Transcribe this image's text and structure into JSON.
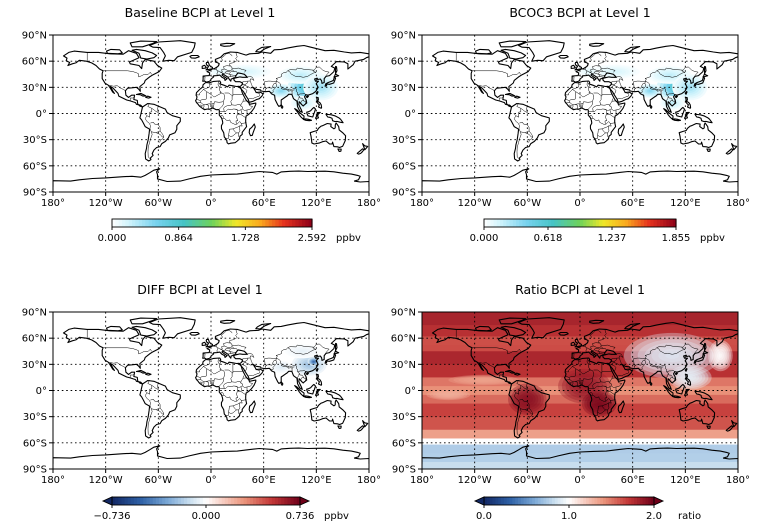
{
  "chart_data": [
    {
      "type": "heatmap",
      "title": "Baseline BCPI at Level 1",
      "colormap": "white-cyan-green-yellow-red-darkred",
      "colorbar": {
        "ticks": [
          "0.000",
          "0.864",
          "1.728",
          "2.592"
        ],
        "unit": "ppbv",
        "range": [
          0,
          2.592
        ],
        "extend": "none"
      },
      "xticks": [
        "180°",
        "120°W",
        "60°W",
        "0°",
        "60°E",
        "120°E",
        "180°"
      ],
      "yticks": [
        "90°N",
        "60°N",
        "30°N",
        "0°",
        "30°S",
        "60°S",
        "90°S"
      ],
      "grid": true,
      "blobs": [
        {
          "lon": 113,
          "lat": 30,
          "rlon": 26,
          "rlat": 16,
          "v": 0.45
        },
        {
          "lon": 116,
          "lat": 34,
          "rlon": 10,
          "rlat": 7,
          "v": 0.85
        },
        {
          "lon": 80,
          "lat": 26,
          "rlon": 14,
          "rlat": 8,
          "v": 0.22
        },
        {
          "lon": 102,
          "lat": 44,
          "rlon": 25,
          "rlat": 10,
          "v": 0.12
        },
        {
          "lon": 125,
          "lat": 30,
          "rlon": 20,
          "rlat": 15,
          "v": 0.18
        },
        {
          "lon": 105,
          "lat": 12,
          "rlon": 14,
          "rlat": 8,
          "v": 0.12
        },
        {
          "lon": 40,
          "lat": 48,
          "rlon": 28,
          "rlat": 8,
          "v": 0.08
        },
        {
          "lon": 10,
          "lat": 48,
          "rlon": 14,
          "rlat": 6,
          "v": 0.06
        }
      ]
    },
    {
      "type": "heatmap",
      "title": "BCOC3 BCPI at Level 1",
      "colormap": "white-cyan-green-yellow-red-darkred",
      "colorbar": {
        "ticks": [
          "0.000",
          "0.618",
          "1.237",
          "1.855"
        ],
        "unit": "ppbv",
        "range": [
          0,
          1.855
        ],
        "extend": "none"
      },
      "xticks": [
        "180°",
        "120°W",
        "60°W",
        "0°",
        "60°E",
        "120°E",
        "180°"
      ],
      "yticks": [
        "90°N",
        "60°N",
        "30°N",
        "0°",
        "30°S",
        "60°S",
        "90°S"
      ],
      "grid": true,
      "blobs": [
        {
          "lon": 113,
          "lat": 30,
          "rlon": 26,
          "rlat": 16,
          "v": 0.45
        },
        {
          "lon": 115,
          "lat": 34,
          "rlon": 10,
          "rlat": 7,
          "v": 0.85
        },
        {
          "lon": 80,
          "lat": 26,
          "rlon": 14,
          "rlat": 8,
          "v": 0.22
        },
        {
          "lon": 102,
          "lat": 44,
          "rlon": 25,
          "rlat": 10,
          "v": 0.12
        },
        {
          "lon": 125,
          "lat": 30,
          "rlon": 20,
          "rlat": 15,
          "v": 0.18
        },
        {
          "lon": 105,
          "lat": 12,
          "rlon": 14,
          "rlat": 8,
          "v": 0.12
        },
        {
          "lon": 40,
          "lat": 48,
          "rlon": 28,
          "rlat": 8,
          "v": 0.08
        },
        {
          "lon": 10,
          "lat": 48,
          "rlon": 14,
          "rlat": 6,
          "v": 0.06
        }
      ]
    },
    {
      "type": "heatmap",
      "title": "DIFF BCPI at Level 1",
      "colormap": "diverging-blue-white-red",
      "colorbar": {
        "ticks": [
          "−0.736",
          "0.000",
          "0.736"
        ],
        "unit": "ppbv",
        "range": [
          -0.736,
          0.736
        ],
        "extend": "both"
      },
      "xticks": [
        "180°",
        "120°W",
        "60°W",
        "0°",
        "60°E",
        "120°E",
        "180°"
      ],
      "yticks": [
        "90°N",
        "60°N",
        "30°N",
        "0°",
        "30°S",
        "60°S",
        "90°S"
      ],
      "grid": true,
      "blobs": [
        {
          "lon": 112,
          "lat": 30,
          "rlon": 20,
          "rlat": 13,
          "v": -0.35
        },
        {
          "lon": 117,
          "lat": 33,
          "rlon": 7,
          "rlat": 5,
          "v": -0.75
        },
        {
          "lon": 80,
          "lat": 27,
          "rlon": 12,
          "rlat": 7,
          "v": -0.12
        },
        {
          "lon": 104,
          "lat": 45,
          "rlon": 20,
          "rlat": 8,
          "v": -0.08
        }
      ]
    },
    {
      "type": "heatmap",
      "title": "Ratio BCPI at Level 1",
      "colormap": "diverging-blue-white-red",
      "colorbar": {
        "ticks": [
          "0.0",
          "1.0",
          "2.0"
        ],
        "unit": "ratio",
        "range": [
          0,
          2
        ],
        "extend": "both"
      },
      "xticks": [
        "180°",
        "120°W",
        "60°W",
        "0°",
        "60°E",
        "120°E",
        "180°"
      ],
      "yticks": [
        "90°N",
        "60°N",
        "30°N",
        "0°",
        "30°S",
        "60°S",
        "90°S"
      ],
      "grid": true,
      "lat_profile": [
        {
          "lat": 90,
          "v": 1.82
        },
        {
          "lat": 75,
          "v": 1.78
        },
        {
          "lat": 62,
          "v": 1.7
        },
        {
          "lat": 52,
          "v": 1.55
        },
        {
          "lat": 45,
          "v": 1.72
        },
        {
          "lat": 30,
          "v": 1.85
        },
        {
          "lat": 15,
          "v": 1.62
        },
        {
          "lat": 5,
          "v": 1.38
        },
        {
          "lat": -5,
          "v": 1.45
        },
        {
          "lat": -15,
          "v": 1.62
        },
        {
          "lat": -30,
          "v": 1.72
        },
        {
          "lat": -45,
          "v": 1.5
        },
        {
          "lat": -55,
          "v": 1.22
        },
        {
          "lat": -62,
          "v": 0.78
        },
        {
          "lat": -72,
          "v": 0.72
        },
        {
          "lat": -82,
          "v": 0.8
        },
        {
          "lat": -90,
          "v": 0.85
        }
      ],
      "blobs": [
        {
          "lon": 105,
          "lat": 40,
          "rlon": 55,
          "rlat": 26,
          "v": 0.9
        },
        {
          "lon": 125,
          "lat": 15,
          "rlon": 25,
          "rlat": 14,
          "v": 0.92
        },
        {
          "lon": 160,
          "lat": 40,
          "rlon": 14,
          "rlat": 18,
          "v": 1.0
        },
        {
          "lon": 5,
          "lat": 5,
          "rlon": 30,
          "rlat": 20,
          "v": 1.85
        },
        {
          "lon": 22,
          "lat": -15,
          "rlon": 20,
          "rlat": 15,
          "v": 1.95
        },
        {
          "lon": -60,
          "lat": -10,
          "rlon": 22,
          "rlat": 18,
          "v": 1.9
        },
        {
          "lon": -110,
          "lat": 12,
          "rlon": 40,
          "rlat": 6,
          "v": 1.35
        },
        {
          "lon": -150,
          "lat": -5,
          "rlon": 25,
          "rlat": 6,
          "v": 1.3
        }
      ]
    }
  ]
}
